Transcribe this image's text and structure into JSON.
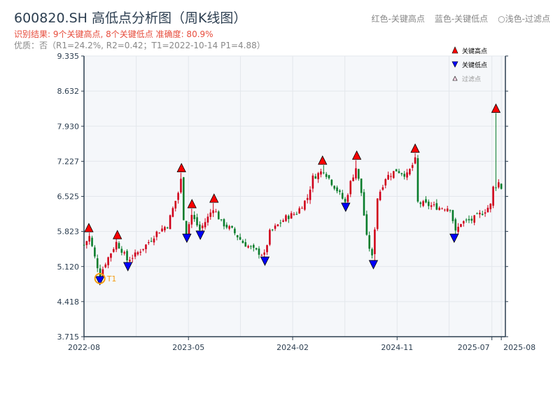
{
  "title": "600820.SH 高低点分析图（周K线图）",
  "result": "识别结果: 9个关键高点, 8个关键低点  准确度: 80.9%",
  "quality": "优质：否（R1=24.2%, R2=0.42；T1=2022-10-14 P1=4.88）",
  "legend_top": {
    "red": "红色-关键高点",
    "blue": "蓝色-关键低点",
    "light": "○浅色-过滤点"
  },
  "colors": {
    "up": "#d0021b",
    "down": "#0a7d2c",
    "high": "#ff0000",
    "low": "#0000ff",
    "t1": "#f39c12",
    "grid": "#e3e7ec",
    "bg": "#f5f7fa",
    "axis": "#2c3e50"
  },
  "chart_data": {
    "type": "candlestick",
    "title": "600820.SH 高低点分析图（周K线图）",
    "ylim": [
      3.715,
      9.335
    ],
    "yticks": [
      "3.715",
      "4.418",
      "5.120",
      "5.823",
      "6.525",
      "7.227",
      "7.930",
      "8.632",
      "9.335"
    ],
    "x_weeks": [
      0,
      156
    ],
    "xticks": [
      {
        "w": 0,
        "label": "2022-08"
      },
      {
        "w": 38.8,
        "label": "2023-05"
      },
      {
        "w": 77.5,
        "label": "2024-02"
      },
      {
        "w": 116.3,
        "label": "2024-11"
      },
      {
        "w": 151.5,
        "label": "2025-07"
      },
      {
        "w": 155,
        "label": "2025-08"
      }
    ],
    "price_path": [
      [
        0,
        5.55
      ],
      [
        2,
        5.72
      ],
      [
        4,
        5.3
      ],
      [
        6,
        4.95
      ],
      [
        8,
        5.2
      ],
      [
        10,
        5.4
      ],
      [
        12,
        5.6
      ],
      [
        14,
        5.45
      ],
      [
        16,
        5.25
      ],
      [
        19,
        5.35
      ],
      [
        23,
        5.55
      ],
      [
        27,
        5.8
      ],
      [
        31,
        5.95
      ],
      [
        35,
        6.6
      ],
      [
        36,
        6.85
      ],
      [
        37,
        6.1
      ],
      [
        38,
        5.8
      ],
      [
        40,
        6.15
      ],
      [
        43,
        5.85
      ],
      [
        46,
        6.1
      ],
      [
        48,
        6.3
      ],
      [
        51,
        6.0
      ],
      [
        55,
        5.85
      ],
      [
        59,
        5.6
      ],
      [
        63,
        5.45
      ],
      [
        67,
        5.35
      ],
      [
        69,
        5.8
      ],
      [
        72,
        5.95
      ],
      [
        75,
        6.1
      ],
      [
        79,
        6.2
      ],
      [
        83,
        6.5
      ],
      [
        85,
        6.9
      ],
      [
        89,
        7.05
      ],
      [
        92,
        6.8
      ],
      [
        94,
        6.65
      ],
      [
        97,
        6.4
      ],
      [
        99,
        6.8
      ],
      [
        101,
        7.1
      ],
      [
        103,
        6.6
      ],
      [
        105,
        5.7
      ],
      [
        107,
        5.3
      ],
      [
        109,
        6.5
      ],
      [
        112,
        6.9
      ],
      [
        116,
        7.05
      ],
      [
        120,
        6.95
      ],
      [
        123,
        7.25
      ],
      [
        124,
        6.4
      ],
      [
        128,
        6.35
      ],
      [
        132,
        6.3
      ],
      [
        136,
        6.3
      ],
      [
        138,
        5.8
      ],
      [
        140,
        6.0
      ],
      [
        144,
        6.05
      ],
      [
        148,
        6.2
      ],
      [
        151,
        6.35
      ],
      [
        152,
        6.7
      ],
      [
        154,
        6.8
      ],
      [
        155,
        6.7
      ]
    ],
    "key_highs": [
      {
        "w": 1.8,
        "price": 5.8
      },
      {
        "w": 12.4,
        "price": 5.66
      },
      {
        "w": 36.2,
        "price": 7.0
      },
      {
        "w": 40.1,
        "price": 6.28
      },
      {
        "w": 48.3,
        "price": 6.39
      },
      {
        "w": 88.6,
        "price": 7.15
      },
      {
        "w": 101.3,
        "price": 7.25
      },
      {
        "w": 123,
        "price": 7.39
      },
      {
        "w": 153,
        "price": 8.19
      }
    ],
    "key_lows": [
      {
        "w": 5.9,
        "price": 4.88
      },
      {
        "w": 16.3,
        "price": 5.16
      },
      {
        "w": 38.2,
        "price": 5.73
      },
      {
        "w": 43.2,
        "price": 5.79
      },
      {
        "w": 67.2,
        "price": 5.27
      },
      {
        "w": 97.2,
        "price": 6.35
      },
      {
        "w": 107.5,
        "price": 5.2
      },
      {
        "w": 137.5,
        "price": 5.73
      }
    ],
    "t1": {
      "label": "T1",
      "w": 5.9,
      "price": 4.88
    },
    "legend": {
      "high": "关键高点",
      "low": "关键低点",
      "filtered": "过滤点",
      "placement": "top-right"
    }
  }
}
